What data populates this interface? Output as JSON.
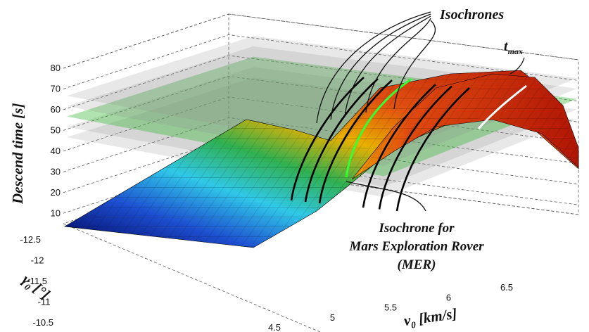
{
  "chart_data": {
    "type": "surface3d",
    "title": "",
    "axes": {
      "x": {
        "label_main": "v",
        "label_sub": "0",
        "label_rest": " [km/s]",
        "ticks": [
          "4.5",
          "5",
          "5.5",
          "6",
          "6.5"
        ],
        "range": [
          4.5,
          7.2
        ]
      },
      "y": {
        "label_main": "γ",
        "label_sub": "0",
        "label_rest": " [°]",
        "ticks": [
          "-12.5",
          "-12",
          "-11.5",
          "-11",
          "-10.5"
        ],
        "range": [
          -12.5,
          -10.5
        ]
      },
      "z": {
        "label": "Descend time [s]",
        "ticks": [
          "10",
          "20",
          "30",
          "40",
          "50",
          "60",
          "70",
          "80"
        ],
        "range": [
          5,
          80
        ]
      }
    },
    "isochrone_levels_s": [
      45,
      50,
      55,
      60,
      65
    ],
    "mer_isochrone_s": 55,
    "t_max_label": {
      "main": "t",
      "sub": "max"
    },
    "annotations": {
      "isochrones": "Isochrones",
      "mer_line1": "Isochrone for",
      "mer_line2": "Mars Exploration Rover",
      "mer_line3": "(MER)"
    },
    "colors": {
      "low": "#00008f",
      "mid": "#38d8e8",
      "green": "#3fc23f",
      "high": "#c81e0e",
      "mer_curve": "#33ff33",
      "tmax_curve": "#ffffff",
      "plane": "#999999"
    }
  }
}
